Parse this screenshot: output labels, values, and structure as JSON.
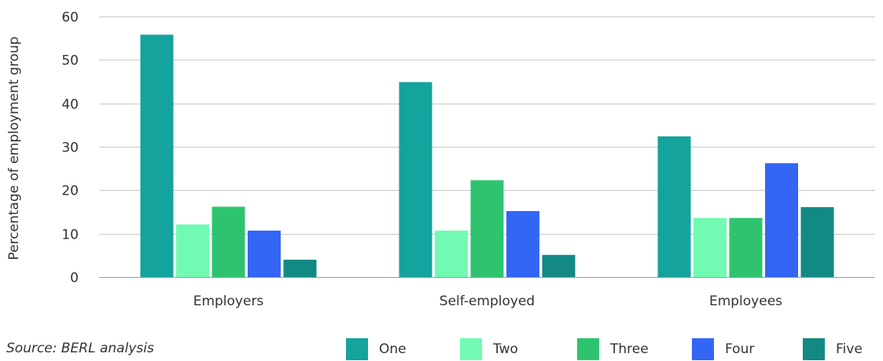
{
  "chart_data": {
    "type": "bar",
    "title": "",
    "xlabel": "",
    "ylabel": "Percentage of employment group",
    "ylim": [
      0,
      60
    ],
    "yticks": [
      0,
      10,
      20,
      30,
      40,
      50,
      60
    ],
    "grid": true,
    "legend_position": "bottom-right",
    "categories": [
      "Employers",
      "Self-employed",
      "Employees"
    ],
    "series": [
      {
        "name": "One",
        "color": "#14a39d",
        "values": [
          55.8,
          44.9,
          32.4
        ]
      },
      {
        "name": "Two",
        "color": "#72fab3",
        "values": [
          12.1,
          10.7,
          13.6
        ]
      },
      {
        "name": "Three",
        "color": "#2ec46f",
        "values": [
          16.2,
          22.3,
          13.6
        ]
      },
      {
        "name": "Four",
        "color": "#3366f5",
        "values": [
          10.7,
          15.2,
          26.2
        ]
      },
      {
        "name": "Five",
        "color": "#128a83",
        "values": [
          4.0,
          5.1,
          16.1
        ]
      }
    ]
  },
  "source_note": "Source: BERL analysis"
}
